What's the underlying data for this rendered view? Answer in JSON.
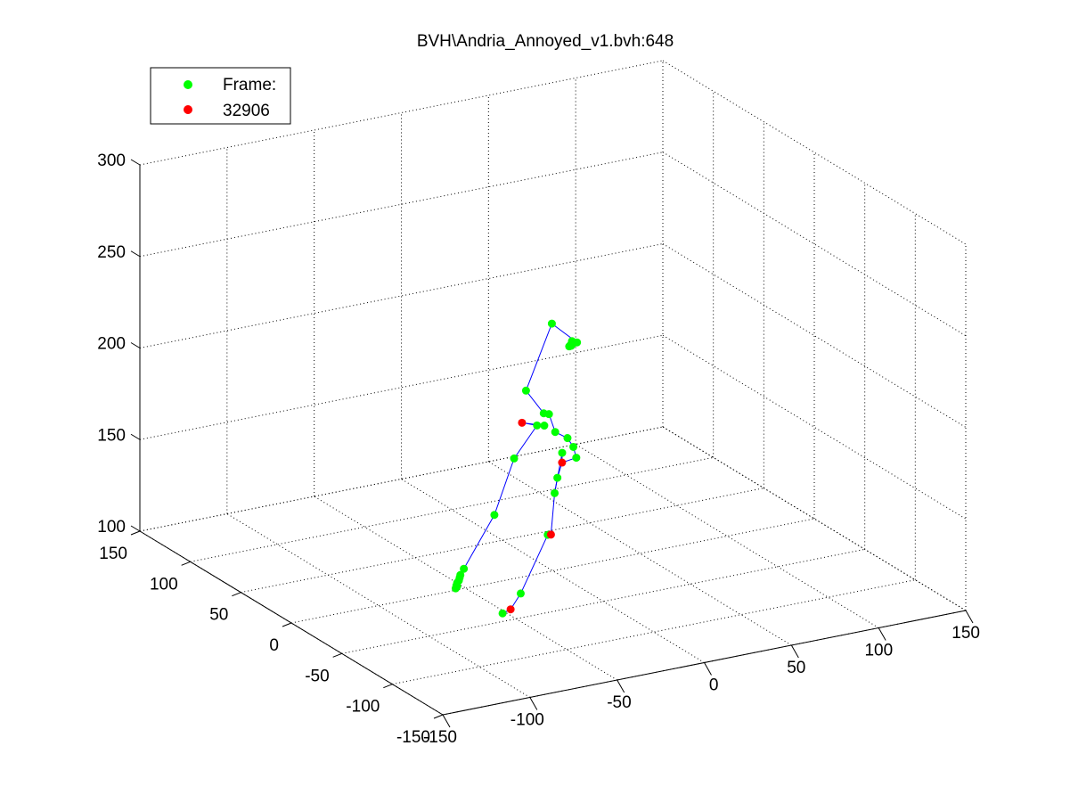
{
  "chart_data": {
    "type": "scatter",
    "title": "BVH\\Andria_Annoyed_v1.bvh:648",
    "legend": [
      {
        "label": "Frame:",
        "color": "#00ff00"
      },
      {
        "label": "32906",
        "color": "#ff0000"
      }
    ],
    "legend_position": "top-left",
    "grid": true,
    "x_axis": {
      "range": [
        -150,
        150
      ],
      "ticks": [
        -150,
        -100,
        -50,
        0,
        50,
        100,
        150
      ]
    },
    "y_axis": {
      "range": [
        -150,
        150
      ],
      "ticks": [
        -150,
        -100,
        -50,
        0,
        50,
        100,
        150
      ]
    },
    "z_axis": {
      "range": [
        100,
        300
      ],
      "ticks": [
        100,
        150,
        200,
        250,
        300
      ]
    },
    "marker_colors": {
      "green": "#00ff00",
      "red": "#ff0000",
      "bone": "#0000ff"
    },
    "green_points": [
      {
        "x": 40,
        "y": 70,
        "z": 204
      },
      {
        "x": 44,
        "y": 52,
        "z": 199
      },
      {
        "x": 42,
        "y": 55,
        "z": 197
      },
      {
        "x": 43,
        "y": 56,
        "z": 196
      },
      {
        "x": 44,
        "y": 57,
        "z": 198
      },
      {
        "x": 43,
        "y": 58,
        "z": 195
      },
      {
        "x": 44,
        "y": 56,
        "z": 197
      },
      {
        "x": 2,
        "y": 30,
        "z": 188
      },
      {
        "x": 0,
        "y": 9,
        "z": 183
      },
      {
        "x": 3,
        "y": 9,
        "z": 182
      },
      {
        "x": -5,
        "y": 7,
        "z": 178
      },
      {
        "x": -2,
        "y": 5,
        "z": 178
      },
      {
        "x": -28,
        "y": -10,
        "z": 170
      },
      {
        "x": -48,
        "y": -25,
        "z": 148
      },
      {
        "x": -80,
        "y": -50,
        "z": 133
      },
      {
        "x": -82,
        "y": -50,
        "z": 130
      },
      {
        "x": -83,
        "y": -51,
        "z": 129
      },
      {
        "x": -84,
        "y": -52,
        "z": 128
      },
      {
        "x": -85,
        "y": -52,
        "z": 127
      },
      {
        "x": -86,
        "y": -53,
        "z": 126
      },
      {
        "x": -87,
        "y": -54,
        "z": 125
      },
      {
        "x": -85,
        "y": -52,
        "z": 125
      },
      {
        "x": 6,
        "y": 8,
        "z": 172
      },
      {
        "x": 20,
        "y": 20,
        "z": 162
      },
      {
        "x": 28,
        "y": 28,
        "z": 153
      },
      {
        "x": 32,
        "y": 32,
        "z": 145
      },
      {
        "x": 32,
        "y": 46,
        "z": 143
      },
      {
        "x": 20,
        "y": 30,
        "z": 137
      },
      {
        "x": 0,
        "y": 5,
        "z": 118
      },
      {
        "x": 30,
        "y": 50,
        "z": 120
      },
      {
        "x": -30,
        "y": -20,
        "z": 100
      },
      {
        "x": -52,
        "y": -40,
        "z": 100
      }
    ],
    "red_points": [
      {
        "x": -20,
        "y": -4,
        "z": 186
      },
      {
        "x": 25,
        "y": 34,
        "z": 143
      },
      {
        "x": 25,
        "y": 45,
        "z": 100
      },
      {
        "x": -30,
        "y": -10,
        "z": 88
      }
    ]
  }
}
